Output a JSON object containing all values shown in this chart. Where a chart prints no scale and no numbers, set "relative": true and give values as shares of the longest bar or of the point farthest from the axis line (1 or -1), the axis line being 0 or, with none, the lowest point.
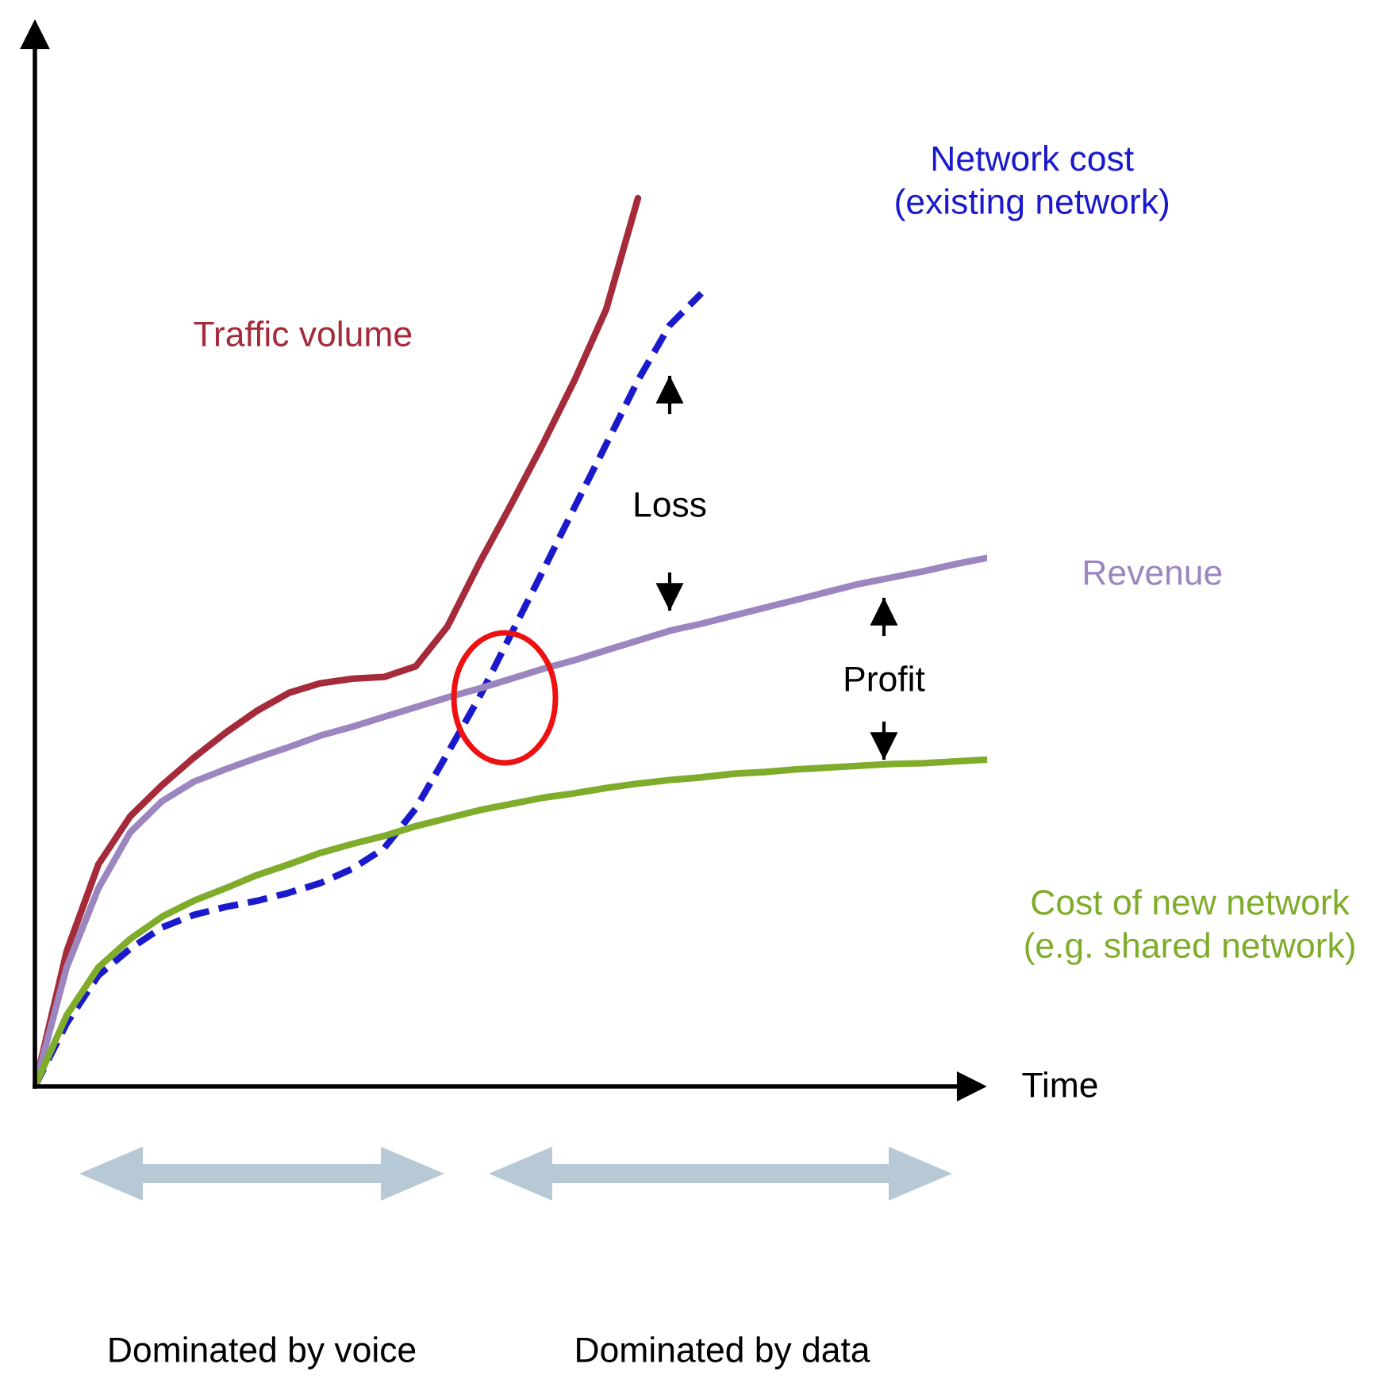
{
  "chart_data": {
    "type": "line",
    "relative": true,
    "legend": false,
    "grid": false,
    "marker": "none",
    "categories": [
      null,
      null,
      null,
      null,
      null,
      null,
      null,
      null,
      null,
      null,
      null,
      null,
      null,
      null,
      null,
      null,
      null,
      null,
      null,
      null,
      null,
      null,
      null,
      null,
      null,
      null,
      null,
      null,
      null,
      null,
      null
    ],
    "series": [
      {
        "name": "Traffic volume",
        "color": "#a52a3a",
        "line_style": "solid",
        "values": [
          0,
          0.152,
          0.25,
          0.304,
          0.339,
          0.37,
          0.398,
          0.423,
          0.443,
          0.454,
          0.459,
          0.461,
          0.473,
          0.518,
          0.589,
          0.655,
          0.723,
          0.795,
          0.875,
          1,
          null,
          null,
          null,
          null,
          null,
          null,
          null,
          null,
          null,
          null,
          null
        ]
      },
      {
        "name": "Network cost\n(existing network)",
        "color": "#1a1acc",
        "line_style": "dashed",
        "values": [
          0,
          0.071,
          0.125,
          0.155,
          0.179,
          0.193,
          0.202,
          0.209,
          0.218,
          0.229,
          0.245,
          0.268,
          0.313,
          0.375,
          0.438,
          0.509,
          0.58,
          0.652,
          0.723,
          0.795,
          0.857,
          0.893,
          null,
          null,
          null,
          null,
          null,
          null,
          null,
          null,
          null
        ]
      },
      {
        "name": "Revenue",
        "color": "#9b86bf",
        "line_style": "solid",
        "values": [
          0,
          0.134,
          0.223,
          0.286,
          0.321,
          0.343,
          0.357,
          0.37,
          0.382,
          0.395,
          0.405,
          0.416,
          0.427,
          0.438,
          0.448,
          0.459,
          0.47,
          0.48,
          0.491,
          0.502,
          0.513,
          0.521,
          0.53,
          0.539,
          0.548,
          0.557,
          0.566,
          0.573,
          0.58,
          0.588,
          0.595
        ]
      },
      {
        "name": "Cost of new network\n(e.g. shared network)",
        "color": "#7fac2a",
        "line_style": "solid",
        "values": [
          0,
          0.08,
          0.134,
          0.166,
          0.191,
          0.209,
          0.223,
          0.238,
          0.25,
          0.263,
          0.273,
          0.282,
          0.293,
          0.302,
          0.311,
          0.318,
          0.325,
          0.33,
          0.336,
          0.341,
          0.345,
          0.348,
          0.352,
          0.354,
          0.357,
          0.359,
          0.361,
          0.363,
          0.364,
          0.366,
          0.368
        ]
      }
    ],
    "annotations": [
      "Loss",
      "Profit",
      "Time",
      "Dominated by voice",
      "Dominated by data"
    ]
  }
}
